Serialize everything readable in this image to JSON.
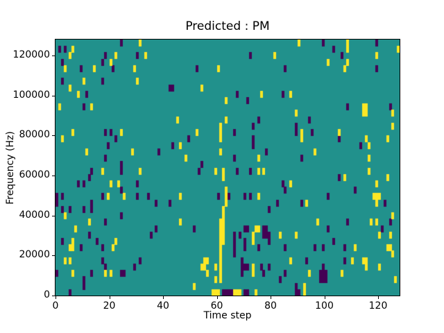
{
  "figure": {
    "title": "Predicted : PM",
    "xlabel": "Time step",
    "ylabel": "Frequency (Hz)"
  },
  "chart_data": {
    "type": "heatmap",
    "title": "Predicted : PM",
    "xlabel": "Time step",
    "ylabel": "Frequency (Hz)",
    "xlim": [
      0,
      128
    ],
    "ylim": [
      0,
      128000
    ],
    "x_ticks": [
      0,
      20,
      40,
      60,
      80,
      100,
      120
    ],
    "y_ticks": [
      0,
      20000,
      40000,
      60000,
      80000,
      100000,
      120000
    ],
    "grid": {
      "cols": 128,
      "rows": 40
    },
    "legend": "none",
    "colors": {
      "figure_bg": "#ffffff",
      "background_mid": "#21918c",
      "low": "#440154",
      "high": "#fde725",
      "axes": "#000000"
    },
    "high_cells": [
      [
        31,
        39
      ],
      [
        6,
        38
      ],
      [
        5,
        37
      ],
      [
        33,
        37
      ],
      [
        20,
        36
      ],
      [
        22,
        37
      ],
      [
        3,
        35
      ],
      [
        14,
        35
      ],
      [
        29,
        35
      ],
      [
        10,
        33
      ],
      [
        30,
        33
      ],
      [
        5,
        32
      ],
      [
        8,
        31
      ],
      [
        1,
        29
      ],
      [
        13,
        29
      ],
      [
        6,
        25
      ],
      [
        24,
        25
      ],
      [
        2,
        24
      ],
      [
        11,
        22
      ],
      [
        28,
        22
      ],
      [
        81,
        37
      ],
      [
        60,
        35
      ],
      [
        54,
        32
      ],
      [
        76,
        31
      ],
      [
        63,
        30
      ],
      [
        45,
        27
      ],
      [
        63,
        27
      ],
      [
        61,
        26
      ],
      [
        61,
        25
      ],
      [
        61,
        24
      ],
      [
        52,
        25
      ],
      [
        46,
        23
      ],
      [
        48,
        21
      ],
      [
        61,
        22
      ],
      [
        75,
        21
      ],
      [
        90,
        39
      ],
      [
        108,
        39
      ],
      [
        108,
        38
      ],
      [
        127,
        38
      ],
      [
        119,
        37
      ],
      [
        101,
        36
      ],
      [
        108,
        36
      ],
      [
        107,
        35
      ],
      [
        87,
        31
      ],
      [
        114,
        29
      ],
      [
        115,
        29
      ],
      [
        114,
        28
      ],
      [
        115,
        28
      ],
      [
        89,
        28
      ],
      [
        125,
        28
      ],
      [
        125,
        26
      ],
      [
        91,
        25
      ],
      [
        91,
        24
      ],
      [
        105,
        25
      ],
      [
        115,
        24
      ],
      [
        123,
        24
      ],
      [
        116,
        23
      ],
      [
        96,
        22
      ],
      [
        116,
        21
      ],
      [
        17,
        19
      ],
      [
        31,
        19
      ],
      [
        20,
        17
      ],
      [
        23,
        17
      ],
      [
        19,
        15
      ],
      [
        25,
        15
      ],
      [
        3,
        12
      ],
      [
        12,
        11
      ],
      [
        7,
        10
      ],
      [
        6,
        8
      ],
      [
        22,
        8
      ],
      [
        21,
        7
      ],
      [
        5,
        7
      ],
      [
        6,
        7
      ],
      [
        3,
        5
      ],
      [
        5,
        5
      ],
      [
        6,
        3
      ],
      [
        18,
        3
      ],
      [
        20,
        3
      ],
      [
        59,
        19
      ],
      [
        62,
        19
      ],
      [
        62,
        18
      ],
      [
        75,
        19
      ],
      [
        77,
        19
      ],
      [
        46,
        15
      ],
      [
        63,
        16
      ],
      [
        63,
        15
      ],
      [
        63,
        14
      ],
      [
        75,
        15
      ],
      [
        62,
        13
      ],
      [
        62,
        12
      ],
      [
        46,
        11
      ],
      [
        61,
        11
      ],
      [
        62,
        11
      ],
      [
        61,
        10
      ],
      [
        62,
        10
      ],
      [
        74,
        10
      ],
      [
        75,
        10
      ],
      [
        61,
        9
      ],
      [
        62,
        9
      ],
      [
        73,
        9
      ],
      [
        61,
        8
      ],
      [
        62,
        8
      ],
      [
        73,
        8
      ],
      [
        83,
        9
      ],
      [
        61,
        7
      ],
      [
        61,
        6
      ],
      [
        55,
        5
      ],
      [
        56,
        5
      ],
      [
        61,
        5
      ],
      [
        61,
        4
      ],
      [
        73,
        4
      ],
      [
        54,
        4
      ],
      [
        55,
        4
      ],
      [
        59,
        4
      ],
      [
        61,
        3
      ],
      [
        73,
        3
      ],
      [
        56,
        3
      ],
      [
        61,
        2
      ],
      [
        59,
        2
      ],
      [
        51,
        1
      ],
      [
        58,
        0
      ],
      [
        59,
        0
      ],
      [
        60,
        0
      ],
      [
        66,
        0
      ],
      [
        67,
        0
      ],
      [
        68,
        0
      ],
      [
        74,
        0
      ],
      [
        92,
        0
      ],
      [
        116,
        19
      ],
      [
        123,
        18
      ],
      [
        107,
        18
      ],
      [
        87,
        17
      ],
      [
        119,
        17
      ],
      [
        118,
        15
      ],
      [
        119,
        15
      ],
      [
        120,
        15
      ],
      [
        93,
        14
      ],
      [
        119,
        14
      ],
      [
        125,
        12
      ],
      [
        97,
        11
      ],
      [
        117,
        11
      ],
      [
        119,
        11
      ],
      [
        89,
        9
      ],
      [
        120,
        9
      ],
      [
        124,
        9
      ],
      [
        111,
        7
      ],
      [
        123,
        7
      ],
      [
        124,
        7
      ],
      [
        125,
        6
      ],
      [
        87,
        5
      ],
      [
        110,
        5
      ],
      [
        114,
        5
      ],
      [
        115,
        5
      ],
      [
        115,
        4
      ],
      [
        120,
        4
      ],
      [
        94,
        3
      ],
      [
        106,
        3
      ],
      [
        126,
        2
      ],
      [
        92,
        1
      ]
    ],
    "low_cells": [
      [
        24,
        39
      ],
      [
        1,
        38
      ],
      [
        3,
        38
      ],
      [
        18,
        37
      ],
      [
        30,
        37
      ],
      [
        2,
        36
      ],
      [
        17,
        36
      ],
      [
        9,
        35
      ],
      [
        21,
        35
      ],
      [
        2,
        33
      ],
      [
        17,
        33
      ],
      [
        11,
        31
      ],
      [
        42,
        32
      ],
      [
        10,
        29
      ],
      [
        18,
        25
      ],
      [
        20,
        25
      ],
      [
        22,
        24
      ],
      [
        19,
        23
      ],
      [
        38,
        22
      ],
      [
        18,
        21
      ],
      [
        24,
        20
      ],
      [
        72,
        37
      ],
      [
        52,
        35
      ],
      [
        85,
        35
      ],
      [
        43,
        32
      ],
      [
        67,
        31
      ],
      [
        84,
        31
      ],
      [
        71,
        30
      ],
      [
        75,
        27
      ],
      [
        73,
        26
      ],
      [
        66,
        25
      ],
      [
        49,
        24
      ],
      [
        73,
        24
      ],
      [
        43,
        23
      ],
      [
        73,
        23
      ],
      [
        78,
        22
      ],
      [
        66,
        21
      ],
      [
        54,
        20
      ],
      [
        99,
        39
      ],
      [
        119,
        39
      ],
      [
        103,
        38
      ],
      [
        106,
        37
      ],
      [
        119,
        35
      ],
      [
        108,
        29
      ],
      [
        124,
        29
      ],
      [
        94,
        27
      ],
      [
        89,
        26
      ],
      [
        89,
        25
      ],
      [
        95,
        25
      ],
      [
        105,
        24
      ],
      [
        113,
        23
      ],
      [
        91,
        21
      ],
      [
        13,
        19
      ],
      [
        24,
        19
      ],
      [
        12,
        18
      ],
      [
        8,
        17
      ],
      [
        10,
        17
      ],
      [
        30,
        17
      ],
      [
        0,
        15
      ],
      [
        2,
        15
      ],
      [
        17,
        15
      ],
      [
        30,
        15
      ],
      [
        34,
        15
      ],
      [
        24,
        16
      ],
      [
        0,
        14
      ],
      [
        13,
        14
      ],
      [
        37,
        14
      ],
      [
        2,
        13
      ],
      [
        5,
        13
      ],
      [
        10,
        13
      ],
      [
        13,
        13
      ],
      [
        24,
        12
      ],
      [
        18,
        11
      ],
      [
        37,
        10
      ],
      [
        12,
        9
      ],
      [
        35,
        9
      ],
      [
        2,
        8
      ],
      [
        15,
        8
      ],
      [
        9,
        7
      ],
      [
        17,
        7
      ],
      [
        17,
        5
      ],
      [
        31,
        5
      ],
      [
        18,
        4
      ],
      [
        29,
        4
      ],
      [
        0,
        3
      ],
      [
        13,
        3
      ],
      [
        24,
        3
      ],
      [
        25,
        3
      ],
      [
        10,
        2
      ],
      [
        10,
        1
      ],
      [
        5,
        0
      ],
      [
        53,
        19
      ],
      [
        67,
        19
      ],
      [
        72,
        19
      ],
      [
        84,
        17
      ],
      [
        60,
        15
      ],
      [
        64,
        15
      ],
      [
        70,
        15
      ],
      [
        72,
        15
      ],
      [
        42,
        14
      ],
      [
        82,
        14
      ],
      [
        79,
        13
      ],
      [
        51,
        10
      ],
      [
        70,
        10
      ],
      [
        71,
        10
      ],
      [
        77,
        10
      ],
      [
        78,
        10
      ],
      [
        66,
        9
      ],
      [
        68,
        9
      ],
      [
        77,
        9
      ],
      [
        78,
        9
      ],
      [
        79,
        9
      ],
      [
        66,
        8
      ],
      [
        70,
        8
      ],
      [
        79,
        8
      ],
      [
        66,
        7
      ],
      [
        70,
        7
      ],
      [
        75,
        7
      ],
      [
        66,
        6
      ],
      [
        69,
        5
      ],
      [
        69,
        4
      ],
      [
        70,
        4
      ],
      [
        71,
        4
      ],
      [
        76,
        4
      ],
      [
        79,
        4
      ],
      [
        69,
        3
      ],
      [
        77,
        3
      ],
      [
        83,
        2
      ],
      [
        62,
        0
      ],
      [
        63,
        0
      ],
      [
        64,
        0
      ],
      [
        65,
        0
      ],
      [
        70,
        0
      ],
      [
        71,
        0
      ],
      [
        89,
        0
      ],
      [
        90,
        0
      ],
      [
        105,
        18
      ],
      [
        85,
        16
      ],
      [
        111,
        16
      ],
      [
        101,
        15
      ],
      [
        91,
        14
      ],
      [
        122,
        14
      ],
      [
        108,
        11
      ],
      [
        124,
        11
      ],
      [
        101,
        10
      ],
      [
        121,
        10
      ],
      [
        103,
        8
      ],
      [
        85,
        7
      ],
      [
        96,
        7
      ],
      [
        99,
        7
      ],
      [
        107,
        7
      ],
      [
        93,
        5
      ],
      [
        107,
        5
      ],
      [
        99,
        4
      ],
      [
        85,
        3
      ],
      [
        98,
        3
      ],
      [
        99,
        3
      ],
      [
        100,
        3
      ],
      [
        98,
        2
      ],
      [
        99,
        2
      ],
      [
        100,
        2
      ],
      [
        89,
        1
      ]
    ]
  }
}
